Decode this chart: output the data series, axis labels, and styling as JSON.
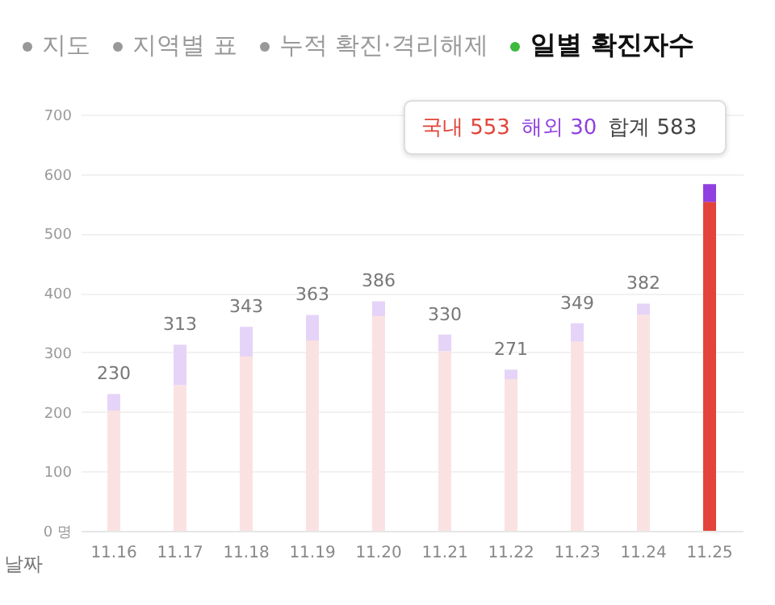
{
  "chart_data": {
    "type": "bar",
    "stacked": true,
    "title": "일별 확진자수",
    "xlabel": "날짜",
    "categories": [
      "11.16",
      "11.17",
      "11.18",
      "11.19",
      "11.20",
      "11.21",
      "11.22",
      "11.23",
      "11.24",
      "11.25"
    ],
    "series": [
      {
        "color": "#e2433a",
        "colors": [
          "#fbe2e2",
          "#fbe2e2",
          "#fbe2e2",
          "#fbe2e2",
          "#fbe2e2",
          "#fbe2e2",
          "#fbe2e2",
          "#fbe2e2",
          "#fbe2e2",
          "#e2433a"
        ],
        "values": [
          202,
          245,
          293,
          320,
          361,
          302,
          255,
          318,
          363,
          553
        ]
      },
      {
        "color": "#9040e0",
        "colors": [
          "#e5d4f7",
          "#e5d4f7",
          "#e5d4f7",
          "#e5d4f7",
          "#e5d4f7",
          "#e5d4f7",
          "#e5d4f7",
          "#e5d4f7",
          "#e5d4f7",
          "#9040e0"
        ],
        "values": [
          28,
          68,
          50,
          43,
          25,
          28,
          16,
          31,
          19,
          30
        ]
      }
    ],
    "totals": [
      "230",
      "313",
      "343",
      "363",
      "386",
      "330",
      "271",
      "349",
      "382",
      null
    ],
    "ylim": [
      0,
      700
    ],
    "yticks": [
      {
        "value": 0,
        "label": "0 명"
      },
      100,
      200,
      300,
      400,
      500,
      600,
      700
    ],
    "grid": "y",
    "annotations": [
      "지도",
      "지역별 표",
      "누적 확진·격리해제",
      "국내 553",
      "해외 30",
      "합계 583"
    ]
  }
}
